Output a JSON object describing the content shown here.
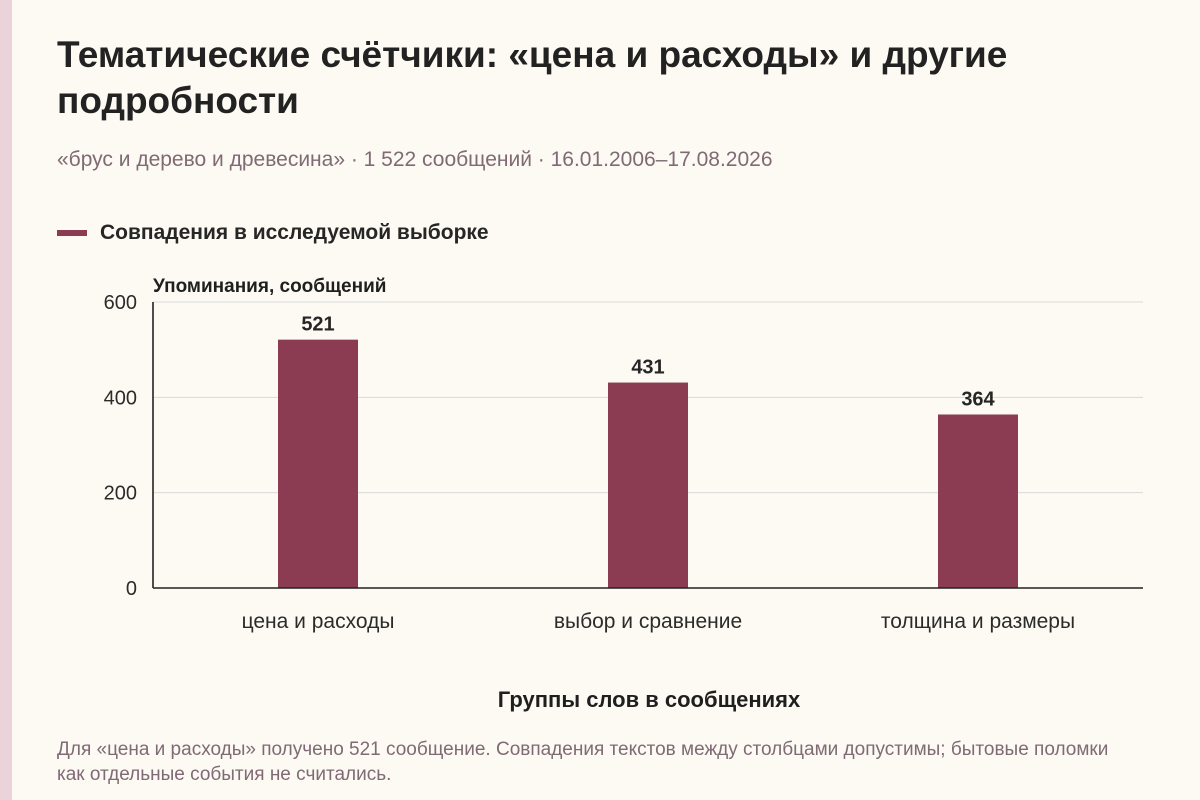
{
  "header": {
    "title": "Тематические счётчики: «цена и расходы» и другие подробности",
    "subtitle": "«брус и дерево и древесина» · 1 522 сообщений · 16.01.2006–17.08.2026"
  },
  "legend": {
    "label": "Совпадения в исследуемой выборке"
  },
  "colors": {
    "bar": "#8b3b52",
    "background": "#fcfaf2",
    "grid": "#d9d9d9",
    "axis": "#222222",
    "muted_text": "#7f6a76"
  },
  "chart_data": {
    "type": "bar",
    "categories": [
      "цена и расходы",
      "выбор и сравнение",
      "толщина и размеры"
    ],
    "series": [
      {
        "name": "Совпадения в исследуемой выборке",
        "values": [
          521,
          431,
          364
        ]
      }
    ],
    "ylabel": "Упоминания, сообщений",
    "xlabel": "Группы слов в сообщениях",
    "ylim": [
      0,
      600
    ],
    "yticks": [
      0,
      200,
      400,
      600
    ],
    "data_labels": [
      "521",
      "431",
      "364"
    ],
    "grid": true,
    "legend_position": "top-left"
  },
  "footnote": "Для «цена и расходы» получено 521 сообщение. Совпадения текстов между столбцами допустимы; бытовые поломки как отдельные события не считались."
}
